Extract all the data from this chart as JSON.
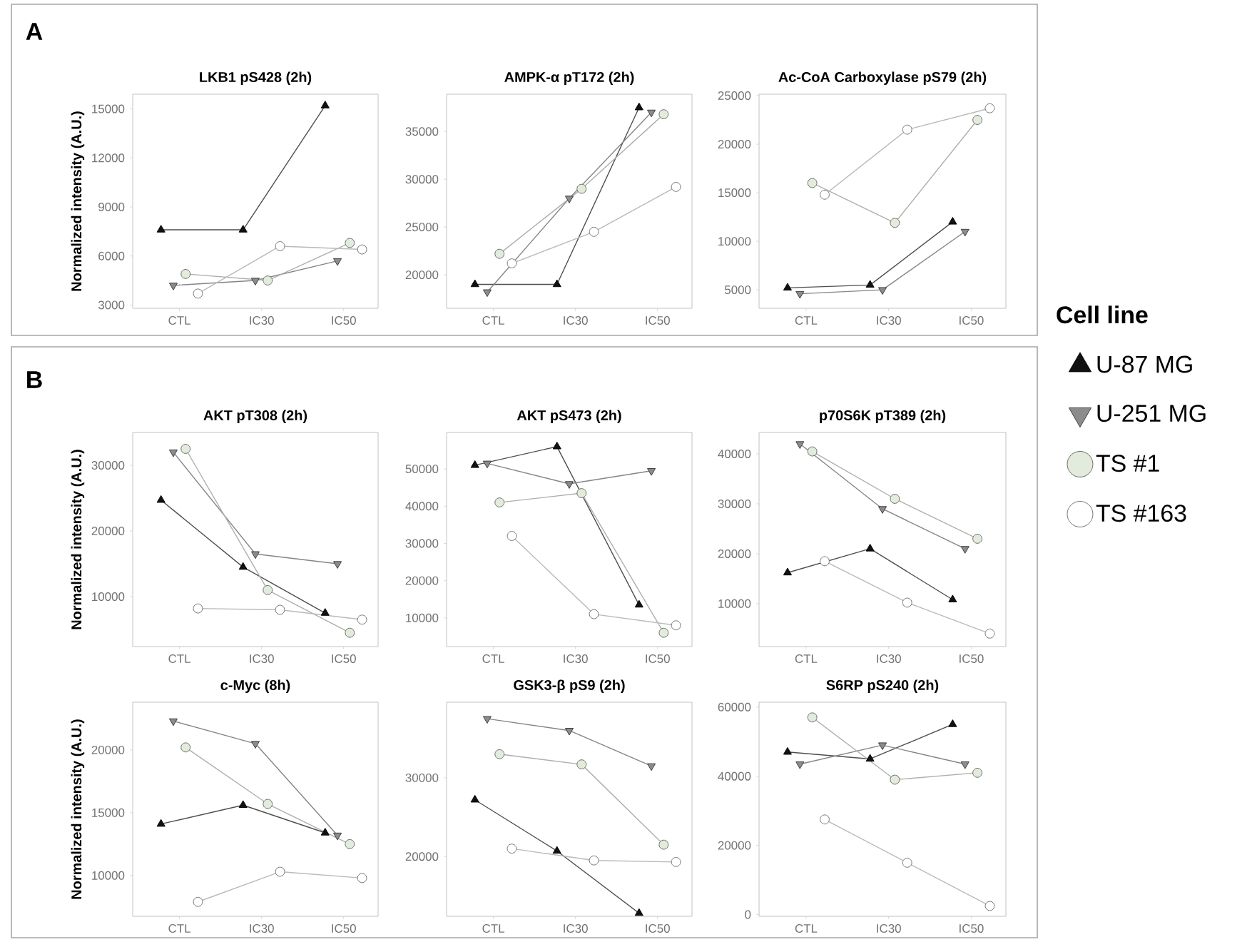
{
  "chart_data": [
    {
      "type": "line",
      "title": "LKB1 pS428 (2h)",
      "ylabel": "Normalized intensity (A.U.)",
      "annotations": [
        "A"
      ],
      "categories": [
        "CTL",
        "IC30",
        "IC50"
      ],
      "ylim": [
        2800,
        15900
      ],
      "yticks": [
        3000,
        6000,
        9000,
        12000,
        15000
      ],
      "series": [
        {
          "color": "#111111",
          "marker": "triangle",
          "values": [
            7600,
            7600,
            15200
          ]
        },
        {
          "color": "#8c8c8c",
          "marker": "triangle-down",
          "values": [
            4200,
            4500,
            5700
          ]
        },
        {
          "color": "#e3ebdc",
          "marker": "circle",
          "values": [
            4900,
            4500,
            6800
          ]
        },
        {
          "color": "#ffffff",
          "marker": "circle",
          "values": [
            3700,
            6600,
            6400
          ]
        }
      ]
    },
    {
      "type": "line",
      "title": "AMPK-α pT172 (2h)",
      "categories": [
        "CTL",
        "IC30",
        "IC50"
      ],
      "ylim": [
        16500,
        38900
      ],
      "yticks": [
        20000,
        25000,
        30000,
        35000
      ],
      "series": [
        {
          "color": "#111111",
          "marker": "triangle",
          "values": [
            19000,
            19000,
            37500
          ]
        },
        {
          "color": "#8c8c8c",
          "marker": "triangle-down",
          "values": [
            18200,
            28000,
            37000
          ]
        },
        {
          "color": "#e3ebdc",
          "marker": "circle",
          "values": [
            22200,
            29000,
            36800
          ]
        },
        {
          "color": "#ffffff",
          "marker": "circle",
          "values": [
            21200,
            24500,
            29200
          ]
        }
      ]
    },
    {
      "type": "line",
      "title": "Ac-CoA Carboxylase pS79 (2h)",
      "categories": [
        "CTL",
        "IC30",
        "IC50"
      ],
      "ylim": [
        3100,
        25150
      ],
      "yticks": [
        5000,
        10000,
        15000,
        20000,
        25000
      ],
      "series": [
        {
          "color": "#111111",
          "marker": "triangle",
          "values": [
            5200,
            5500,
            12000
          ]
        },
        {
          "color": "#8c8c8c",
          "marker": "triangle-down",
          "values": [
            4600,
            5000,
            11000
          ]
        },
        {
          "color": "#e3ebdc",
          "marker": "circle",
          "values": [
            16000,
            11900,
            22500
          ]
        },
        {
          "color": "#ffffff",
          "marker": "circle",
          "values": [
            14800,
            21500,
            23700
          ]
        }
      ]
    },
    {
      "type": "line",
      "title": "AKT pT308 (2h)",
      "ylabel": "Normalized intensity (A.U.)",
      "annotations": [
        "B"
      ],
      "categories": [
        "CTL",
        "IC30",
        "IC50"
      ],
      "ylim": [
        2400,
        35000
      ],
      "yticks": [
        10000,
        20000,
        30000
      ],
      "series": [
        {
          "color": "#111111",
          "marker": "triangle",
          "values": [
            24700,
            14500,
            7500
          ]
        },
        {
          "color": "#8c8c8c",
          "marker": "triangle-down",
          "values": [
            32000,
            16500,
            15000
          ]
        },
        {
          "color": "#e3ebdc",
          "marker": "circle",
          "values": [
            32500,
            11000,
            4500
          ]
        },
        {
          "color": "#ffffff",
          "marker": "circle",
          "values": [
            8200,
            8000,
            6500
          ]
        }
      ]
    },
    {
      "type": "line",
      "title": "AKT pS473 (2h)",
      "categories": [
        "CTL",
        "IC30",
        "IC50"
      ],
      "ylim": [
        2300,
        59800
      ],
      "yticks": [
        10000,
        20000,
        30000,
        40000,
        50000
      ],
      "series": [
        {
          "color": "#111111",
          "marker": "triangle",
          "values": [
            51000,
            56000,
            13500
          ]
        },
        {
          "color": "#8c8c8c",
          "marker": "triangle-down",
          "values": [
            51500,
            46000,
            49500
          ]
        },
        {
          "color": "#e3ebdc",
          "marker": "circle",
          "values": [
            41000,
            43500,
            6000
          ]
        },
        {
          "color": "#ffffff",
          "marker": "circle",
          "values": [
            32000,
            11000,
            8000
          ]
        }
      ]
    },
    {
      "type": "line",
      "title": "p70S6K pT389 (2h)",
      "legend": "right",
      "legend_title": "Cell line",
      "categories": [
        "CTL",
        "IC30",
        "IC50"
      ],
      "ylim": [
        1400,
        44300
      ],
      "yticks": [
        10000,
        20000,
        30000,
        40000
      ],
      "series": [
        {
          "name": "U-87 MG",
          "color": "#111111",
          "marker": "triangle",
          "values": [
            16200,
            21000,
            10800
          ]
        },
        {
          "name": "U-251 MG",
          "color": "#8c8c8c",
          "marker": "triangle-down",
          "values": [
            42000,
            29000,
            21000
          ]
        },
        {
          "name": "TS #1",
          "color": "#e3ebdc",
          "marker": "circle",
          "values": [
            40500,
            31000,
            23000
          ]
        },
        {
          "name": "TS #163",
          "color": "#ffffff",
          "marker": "circle",
          "values": [
            18500,
            10200,
            4000
          ]
        }
      ]
    },
    {
      "type": "line",
      "title": "c-Myc (8h)",
      "ylabel": "Normalized intensity (A.U.)",
      "categories": [
        "CTL",
        "IC30",
        "IC50"
      ],
      "ylim": [
        6750,
        23800
      ],
      "yticks": [
        10000,
        15000,
        20000
      ],
      "series": [
        {
          "color": "#111111",
          "marker": "triangle",
          "values": [
            14100,
            15600,
            13400
          ]
        },
        {
          "color": "#8c8c8c",
          "marker": "triangle-down",
          "values": [
            22300,
            20500,
            13200
          ]
        },
        {
          "color": "#e3ebdc",
          "marker": "circle",
          "values": [
            20200,
            15700,
            12500
          ]
        },
        {
          "color": "#ffffff",
          "marker": "circle",
          "values": [
            7900,
            10300,
            9800
          ]
        }
      ]
    },
    {
      "type": "line",
      "title": "GSK3-β pS9 (2h)",
      "categories": [
        "CTL",
        "IC30",
        "IC50"
      ],
      "ylim": [
        12400,
        39600
      ],
      "yticks": [
        20000,
        30000
      ],
      "series": [
        {
          "color": "#111111",
          "marker": "triangle",
          "values": [
            27200,
            20700,
            12800
          ]
        },
        {
          "color": "#8c8c8c",
          "marker": "triangle-down",
          "values": [
            37500,
            36000,
            31500
          ]
        },
        {
          "color": "#e3ebdc",
          "marker": "circle",
          "values": [
            33000,
            31700,
            21500
          ]
        },
        {
          "color": "#ffffff",
          "marker": "circle",
          "values": [
            21000,
            19500,
            19300
          ]
        }
      ]
    },
    {
      "type": "line",
      "title": "S6RP pS240 (2h)",
      "categories": [
        "CTL",
        "IC30",
        "IC50"
      ],
      "ylim": [
        -500,
        61400
      ],
      "yticks": [
        0,
        20000,
        40000,
        60000
      ],
      "series": [
        {
          "color": "#111111",
          "marker": "triangle",
          "values": [
            47000,
            45000,
            55000
          ]
        },
        {
          "color": "#8c8c8c",
          "marker": "triangle-down",
          "values": [
            43500,
            49000,
            43500
          ]
        },
        {
          "color": "#e3ebdc",
          "marker": "circle",
          "values": [
            57000,
            39000,
            41000
          ]
        },
        {
          "color": "#ffffff",
          "marker": "circle",
          "values": [
            27500,
            15000,
            2500
          ]
        }
      ]
    }
  ]
}
